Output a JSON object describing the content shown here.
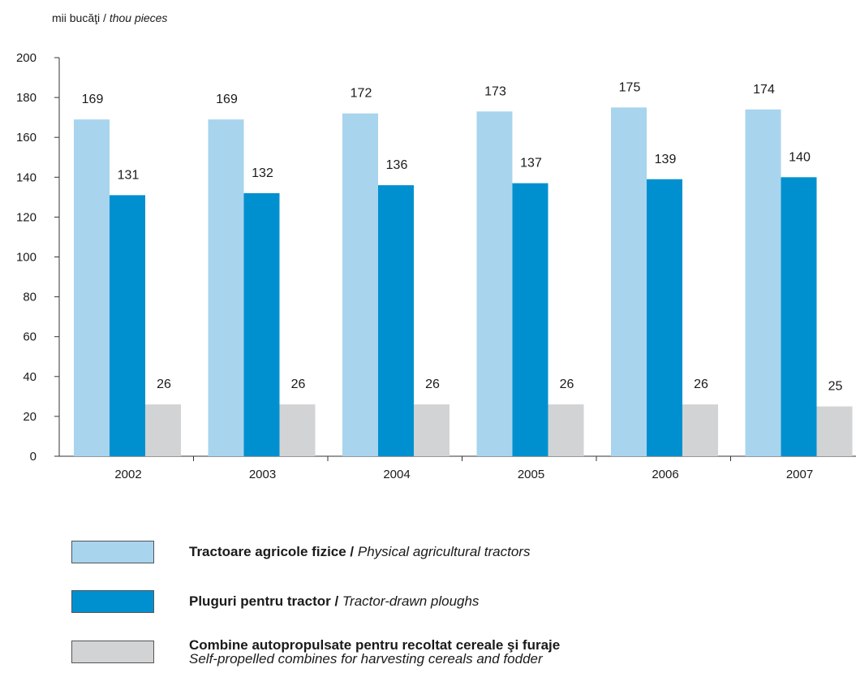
{
  "unit_label": {
    "ro": "mii bucăţi",
    "sep": " / ",
    "en": "thou pieces"
  },
  "colors": {
    "tractors": "#a8d4ee",
    "ploughs": "#0090d0",
    "combines": "#d2d3d5",
    "axis": "#333333"
  },
  "chart_data": {
    "type": "bar",
    "categories": [
      "2002",
      "2003",
      "2004",
      "2005",
      "2006",
      "2007"
    ],
    "ylim": [
      0,
      200
    ],
    "yticks": [
      0,
      20,
      40,
      60,
      80,
      100,
      120,
      140,
      160,
      180,
      200
    ],
    "ytick_labels": [
      "0",
      "20",
      "40",
      "60",
      "80",
      "100",
      "120",
      "140",
      "160",
      "180",
      "200"
    ],
    "grid": false,
    "legend_position": "bottom",
    "series": [
      {
        "name": "Tractoare agricole fizice / Physical agricultural tractors",
        "color": "#a8d4ee",
        "values": [
          169,
          169,
          172,
          173,
          175,
          174
        ]
      },
      {
        "name": "Pluguri pentru tractor / Tractor-drawn ploughs",
        "color": "#0090d0",
        "values": [
          131,
          132,
          136,
          137,
          139,
          140
        ]
      },
      {
        "name": "Combine autopropulsate pentru recoltat cereale şi furaje / Self-propelled combines for harvesting cereals and fodder",
        "color": "#d2d3d5",
        "values": [
          26,
          26,
          26,
          26,
          26,
          25
        ]
      }
    ]
  },
  "legend": [
    {
      "bold": "Tractoare agricole fizice /",
      "italic": "Physical agricultural tractors",
      "color": "#a8d4ee"
    },
    {
      "bold": "Pluguri pentru tractor /",
      "italic": "Tractor-drawn ploughs",
      "color": "#0090d0"
    },
    {
      "bold": "Combine autopropulsate pentru recoltat cereale şi furaje",
      "italic": "Self-propelled combines for harvesting cereals and fodder",
      "color": "#d2d3d5"
    }
  ]
}
